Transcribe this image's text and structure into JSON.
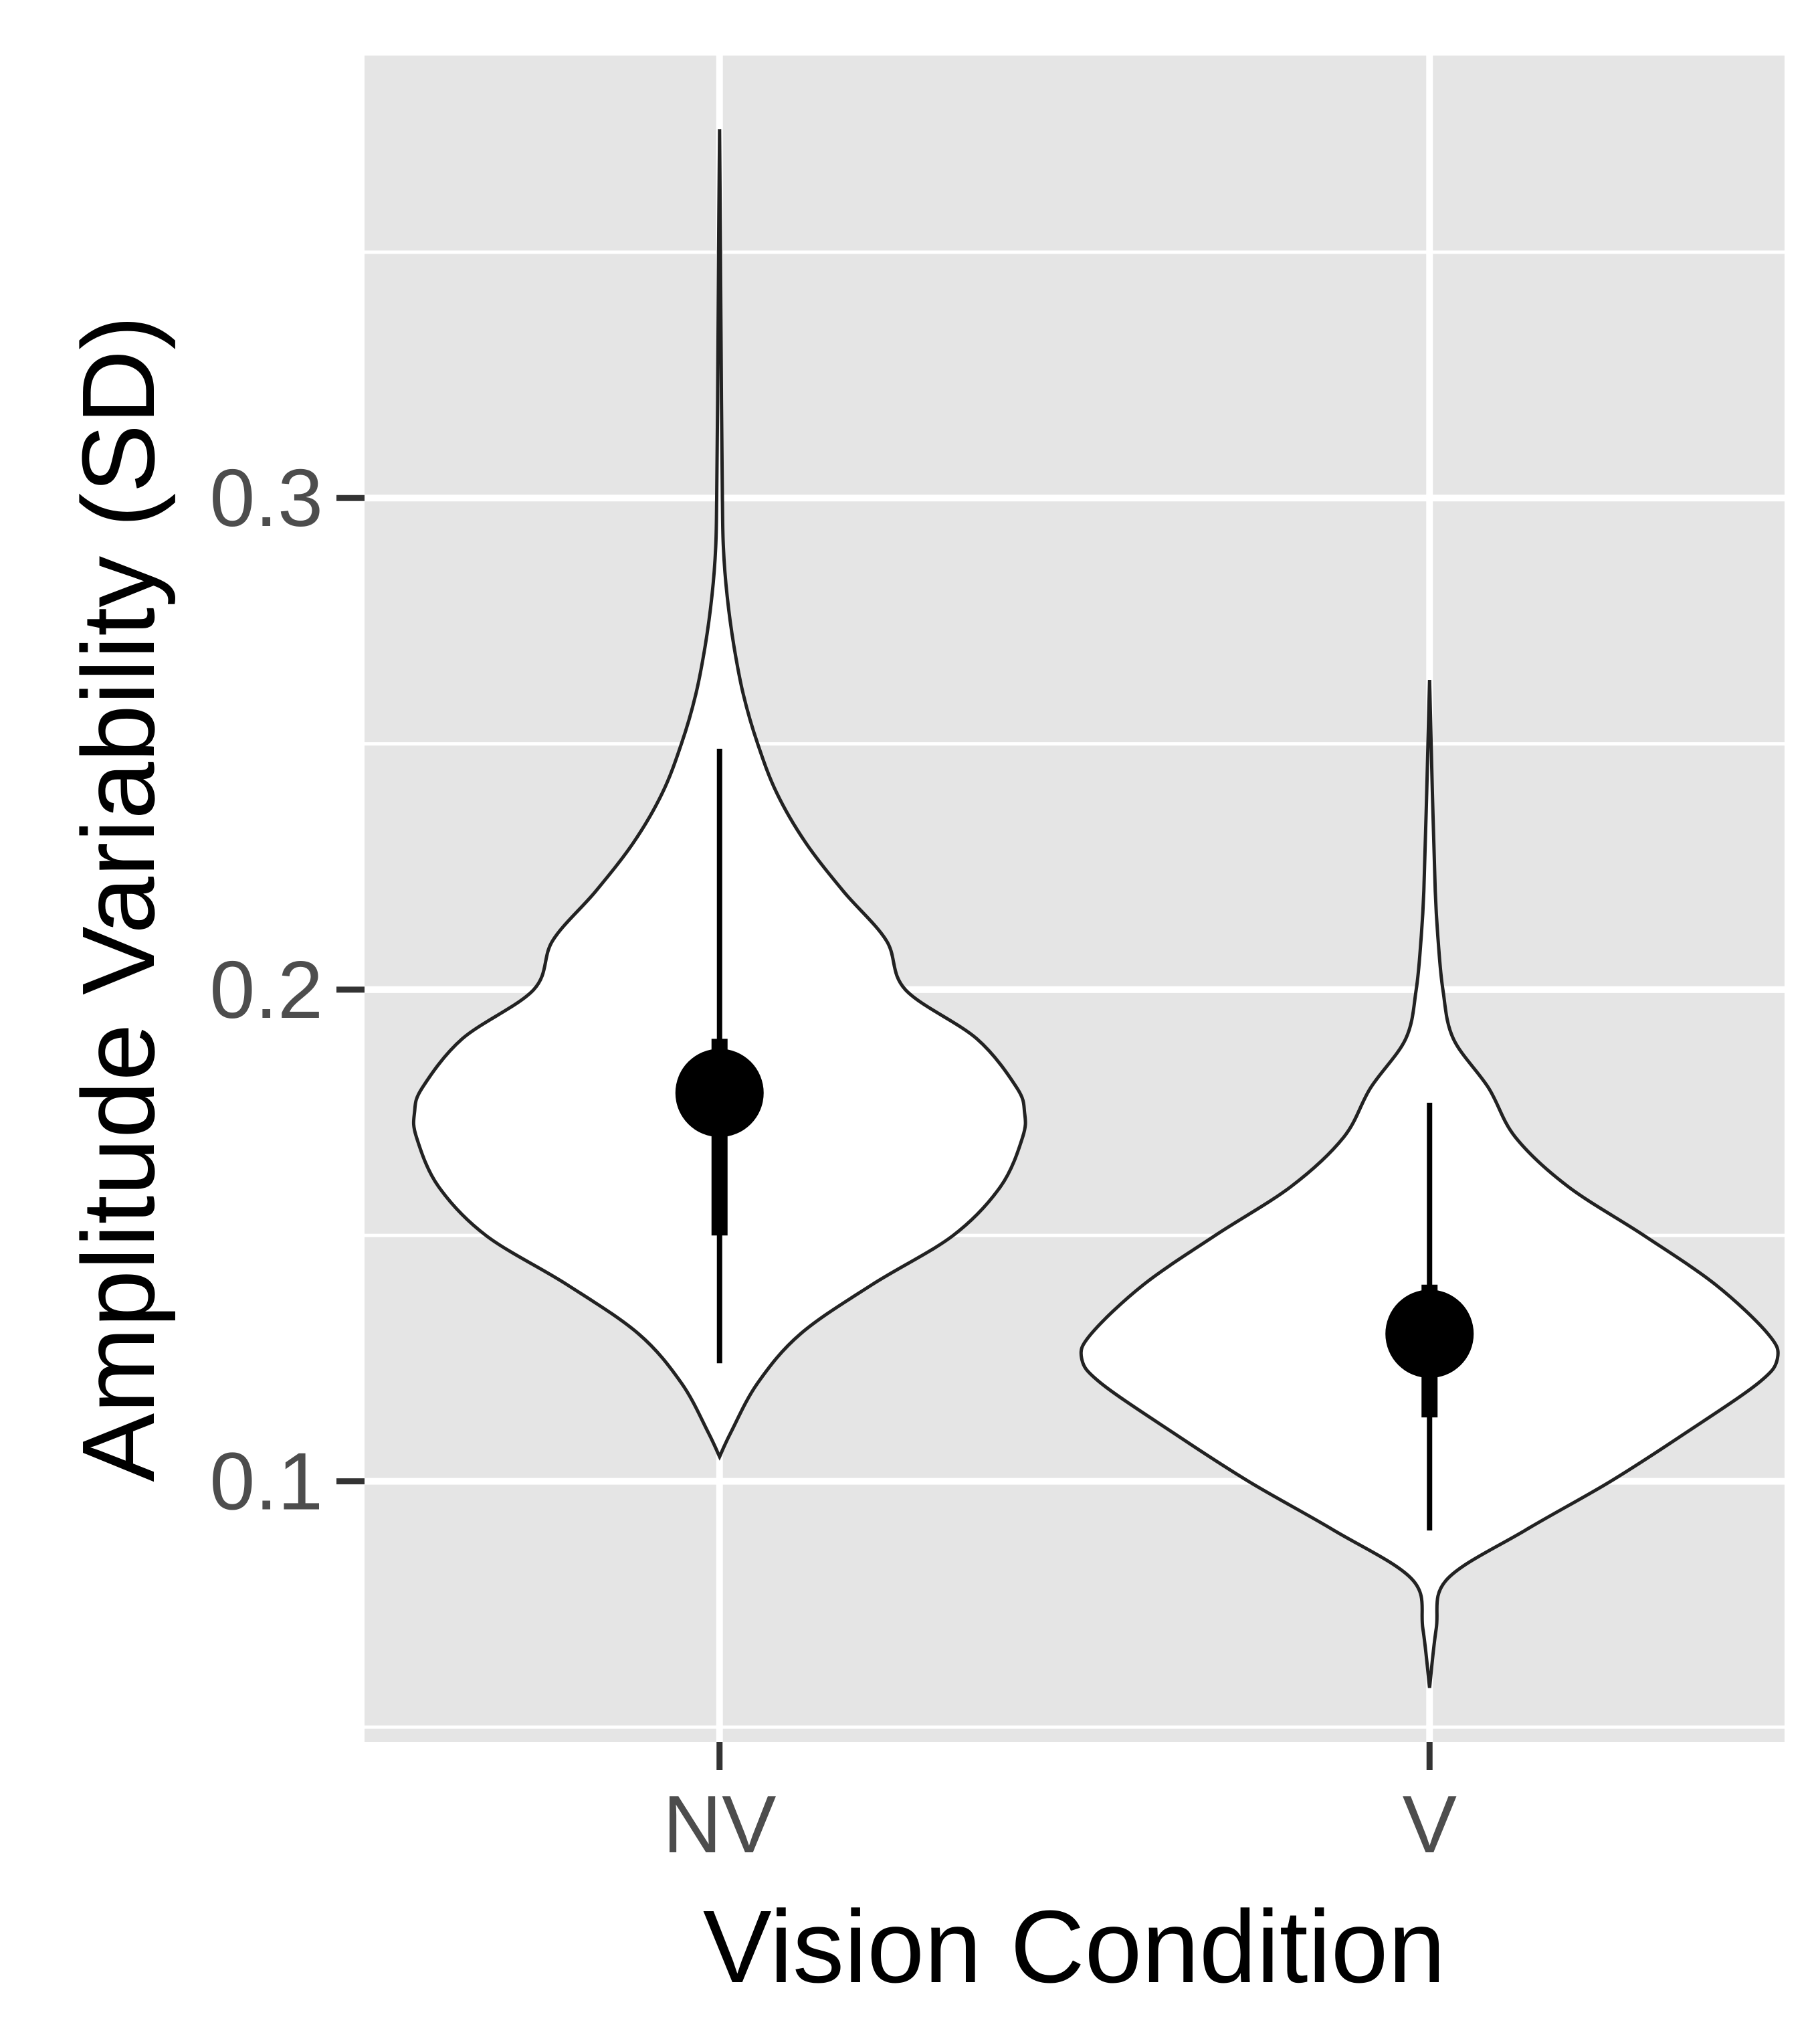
{
  "chart_data": {
    "type": "violin",
    "xlabel": "Vision Condition",
    "ylabel": "Amplitude Variability (SD)",
    "categories": [
      "NV",
      "V"
    ],
    "y_ticks": [
      {
        "value": 0.1,
        "label": "0.1"
      },
      {
        "value": 0.2,
        "label": "0.2"
      },
      {
        "value": 0.3,
        "label": "0.3"
      }
    ],
    "ylim": [
      0.047,
      0.39
    ],
    "grid": true,
    "legend": "none",
    "series": [
      {
        "category": "NV",
        "median": 0.179,
        "interval_66": [
          0.15,
          0.19
        ],
        "interval_95": [
          0.124,
          0.249
        ],
        "density_min": 0.105,
        "density_max": 0.375,
        "density_profile": [
          [
            0.105,
            0.0
          ],
          [
            0.11,
            0.012
          ],
          [
            0.12,
            0.04
          ],
          [
            0.13,
            0.085
          ],
          [
            0.14,
            0.16
          ],
          [
            0.15,
            0.245
          ],
          [
            0.16,
            0.295
          ],
          [
            0.17,
            0.318
          ],
          [
            0.175,
            0.32
          ],
          [
            0.18,
            0.312
          ],
          [
            0.19,
            0.27
          ],
          [
            0.2,
            0.195
          ],
          [
            0.21,
            0.175
          ],
          [
            0.22,
            0.13
          ],
          [
            0.23,
            0.09
          ],
          [
            0.24,
            0.06
          ],
          [
            0.25,
            0.04
          ],
          [
            0.26,
            0.025
          ],
          [
            0.27,
            0.015
          ],
          [
            0.28,
            0.008
          ],
          [
            0.29,
            0.004
          ],
          [
            0.3,
            0.003
          ],
          [
            0.32,
            0.002
          ],
          [
            0.35,
            0.001
          ],
          [
            0.375,
            0.0
          ]
        ]
      },
      {
        "category": "V",
        "median": 0.13,
        "interval_66": [
          0.113,
          0.14
        ],
        "interval_95": [
          0.09,
          0.177
        ],
        "density_min": 0.058,
        "density_max": 0.263,
        "density_profile": [
          [
            0.058,
            0.0
          ],
          [
            0.07,
            0.007
          ],
          [
            0.08,
            0.018
          ],
          [
            0.09,
            0.1
          ],
          [
            0.1,
            0.19
          ],
          [
            0.11,
            0.27
          ],
          [
            0.12,
            0.345
          ],
          [
            0.125,
            0.365
          ],
          [
            0.13,
            0.355
          ],
          [
            0.14,
            0.3
          ],
          [
            0.15,
            0.225
          ],
          [
            0.16,
            0.145
          ],
          [
            0.17,
            0.09
          ],
          [
            0.18,
            0.062
          ],
          [
            0.19,
            0.025
          ],
          [
            0.2,
            0.014
          ],
          [
            0.21,
            0.009
          ],
          [
            0.22,
            0.006
          ],
          [
            0.24,
            0.003
          ],
          [
            0.263,
            0.0
          ]
        ]
      }
    ]
  }
}
